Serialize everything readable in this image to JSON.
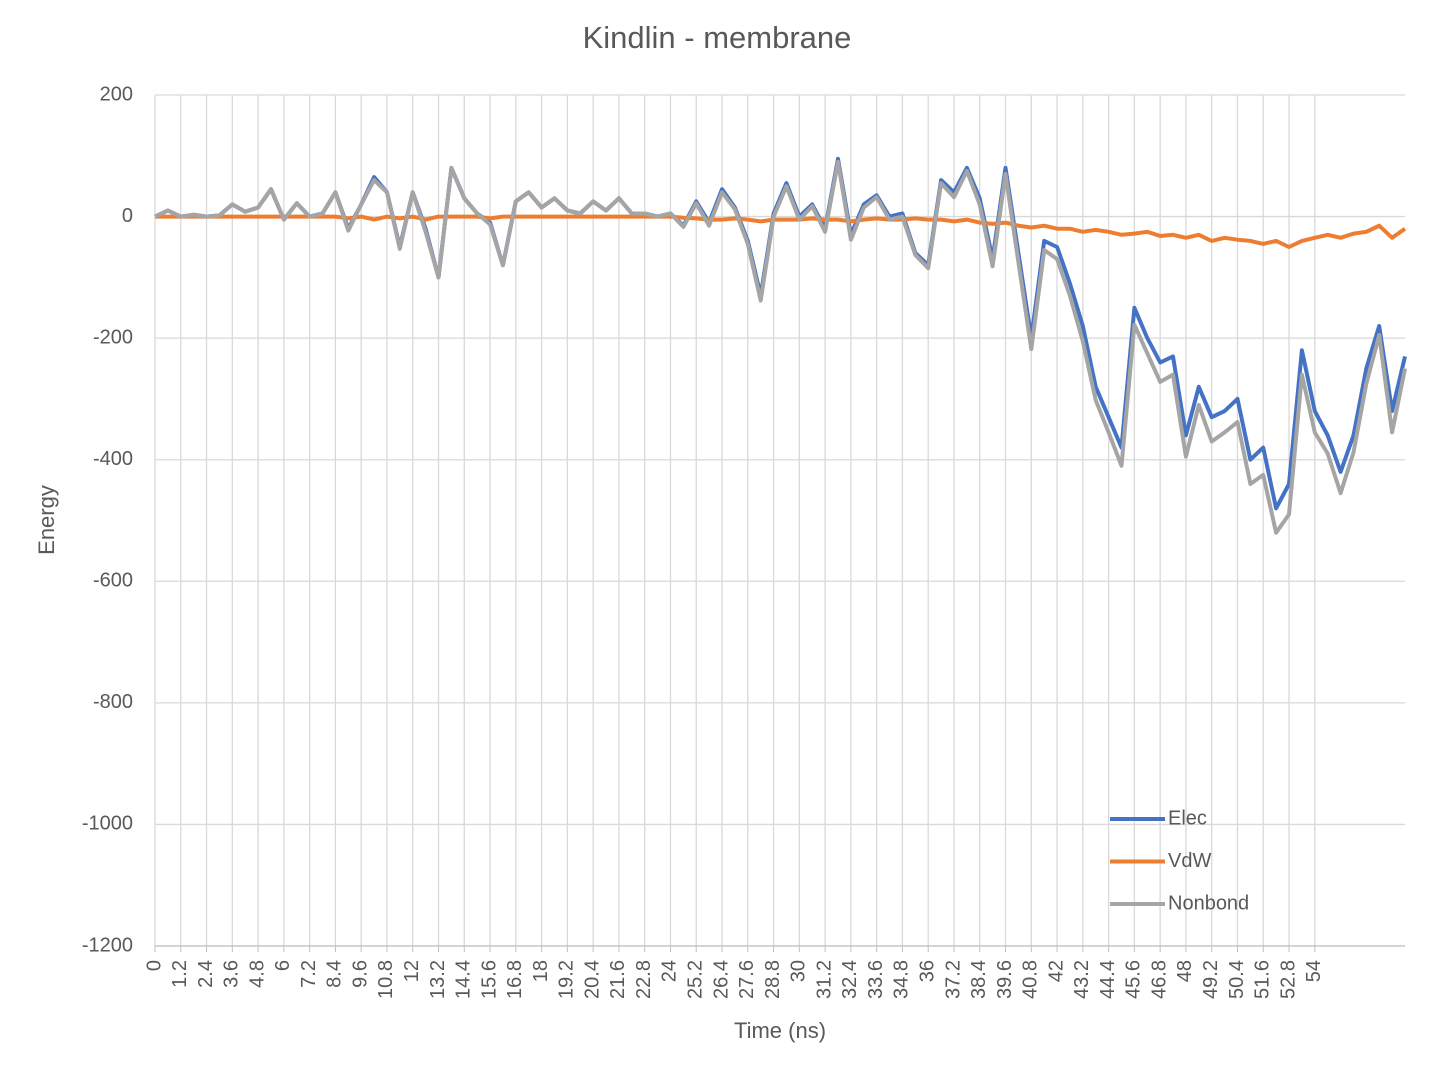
{
  "chart_data": {
    "type": "line",
    "title": "Kindlin - membrane",
    "x_label": "Time (ns)",
    "y_label": "Energy",
    "x": [
      0,
      0.6,
      1.2,
      1.8,
      2.4,
      3,
      3.6,
      4.2,
      4.8,
      5.4,
      6,
      6.6,
      7.2,
      7.8,
      8.4,
      9,
      9.6,
      10.2,
      10.8,
      11.4,
      12,
      12.6,
      13.2,
      13.8,
      14.4,
      15,
      15.6,
      16.2,
      16.8,
      17.4,
      18,
      18.6,
      19.2,
      19.8,
      20.4,
      21,
      21.6,
      22.2,
      22.8,
      23.4,
      24,
      24.6,
      25.2,
      25.8,
      26.4,
      27,
      27.6,
      28.2,
      28.8,
      29.4,
      30,
      30.6,
      31.2,
      31.8,
      32.4,
      33,
      33.6,
      34.2,
      34.8,
      35.4,
      36,
      36.6,
      37.2,
      37.8,
      38.4,
      39,
      39.6,
      40.2,
      40.8,
      41.4,
      42,
      42.6,
      43.2,
      43.8,
      44.4,
      45,
      45.6,
      46.2,
      46.8,
      47.4,
      48,
      48.6,
      49.2,
      49.8,
      50.4,
      51,
      51.6,
      52.2,
      52.8,
      53.4,
      54,
      54.6,
      55.2,
      55.8,
      56.4,
      57,
      57.6,
      58.2
    ],
    "series": [
      {
        "name": "Elec",
        "color": "#4472c4",
        "values": [
          0,
          10,
          0,
          3,
          0,
          2,
          20,
          8,
          15,
          45,
          -5,
          22,
          0,
          5,
          40,
          -20,
          20,
          65,
          40,
          -50,
          40,
          -20,
          -100,
          80,
          30,
          5,
          -10,
          -80,
          25,
          40,
          15,
          30,
          10,
          5,
          25,
          10,
          30,
          5,
          5,
          0,
          5,
          -15,
          25,
          -10,
          45,
          15,
          -40,
          -130,
          5,
          55,
          0,
          20,
          -20,
          95,
          -30,
          20,
          35,
          0,
          5,
          -60,
          -80,
          60,
          40,
          80,
          30,
          -70,
          80,
          -60,
          -200,
          -40,
          -50,
          -110,
          -180,
          -280,
          -330,
          -380,
          -150,
          -200,
          -240,
          -230,
          -360,
          -280,
          -330,
          -320,
          -300,
          -400,
          -380,
          -480,
          -440,
          -220,
          -320,
          -360,
          -420,
          -360,
          -250,
          -180,
          -320,
          -230
        ]
      },
      {
        "name": "VdW",
        "color": "#ed7d31",
        "values": [
          0,
          0,
          0,
          0,
          0,
          0,
          0,
          0,
          0,
          0,
          0,
          0,
          0,
          0,
          0,
          -3,
          0,
          -5,
          0,
          -3,
          0,
          -5,
          0,
          0,
          0,
          0,
          -3,
          0,
          0,
          0,
          0,
          0,
          0,
          0,
          0,
          0,
          0,
          0,
          0,
          0,
          0,
          -2,
          -3,
          -5,
          -5,
          -3,
          -5,
          -8,
          -5,
          -5,
          -5,
          -3,
          -5,
          -5,
          -8,
          -5,
          -3,
          -5,
          -5,
          -3,
          -5,
          -5,
          -8,
          -5,
          -10,
          -12,
          -10,
          -15,
          -18,
          -15,
          -20,
          -20,
          -25,
          -22,
          -25,
          -30,
          -28,
          -25,
          -32,
          -30,
          -35,
          -30,
          -40,
          -35,
          -38,
          -40,
          -45,
          -40,
          -50,
          -40,
          -35,
          -30,
          -35,
          -28,
          -25,
          -15,
          -35,
          -20
        ]
      },
      {
        "name": "Nonbond",
        "color": "#a5a5a5",
        "values": [
          0,
          10,
          0,
          3,
          0,
          2,
          20,
          8,
          15,
          45,
          -5,
          22,
          0,
          5,
          40,
          -23,
          20,
          60,
          40,
          -53,
          40,
          -25,
          -100,
          80,
          30,
          5,
          -13,
          -80,
          25,
          40,
          15,
          30,
          10,
          5,
          25,
          10,
          30,
          5,
          5,
          0,
          5,
          -17,
          22,
          -15,
          40,
          12,
          -45,
          -138,
          0,
          50,
          -5,
          17,
          -25,
          90,
          -38,
          15,
          32,
          -5,
          0,
          -63,
          -85,
          55,
          32,
          75,
          20,
          -82,
          70,
          -75,
          -218,
          -55,
          -70,
          -130,
          -205,
          -302,
          -355,
          -410,
          -178,
          -225,
          -272,
          -260,
          -395,
          -310,
          -370,
          -355,
          -338,
          -440,
          -425,
          -520,
          -490,
          -260,
          -355,
          -390,
          -455,
          -388,
          -275,
          -195,
          -355,
          -250
        ]
      }
    ],
    "xlim": [
      0,
      58.2
    ],
    "xticks": [
      0,
      1.2,
      2.4,
      3.6,
      4.8,
      6,
      7.2,
      8.4,
      9.6,
      10.8,
      12,
      13.2,
      14.4,
      15.6,
      16.8,
      18,
      19.2,
      20.4,
      21.6,
      22.8,
      24,
      25.2,
      26.4,
      27.6,
      28.8,
      30,
      31.2,
      32.4,
      33.6,
      34.8,
      36,
      37.2,
      38.4,
      39.6,
      40.8,
      42,
      43.2,
      44.4,
      45.6,
      46.8,
      48,
      49.2,
      50.4,
      51.6,
      52.8,
      54
    ],
    "ylim": [
      -1200,
      200
    ],
    "yticks": [
      -1200,
      -1000,
      -800,
      -600,
      -400,
      -200,
      0,
      200
    ],
    "grid": true,
    "legend": "lower right"
  }
}
